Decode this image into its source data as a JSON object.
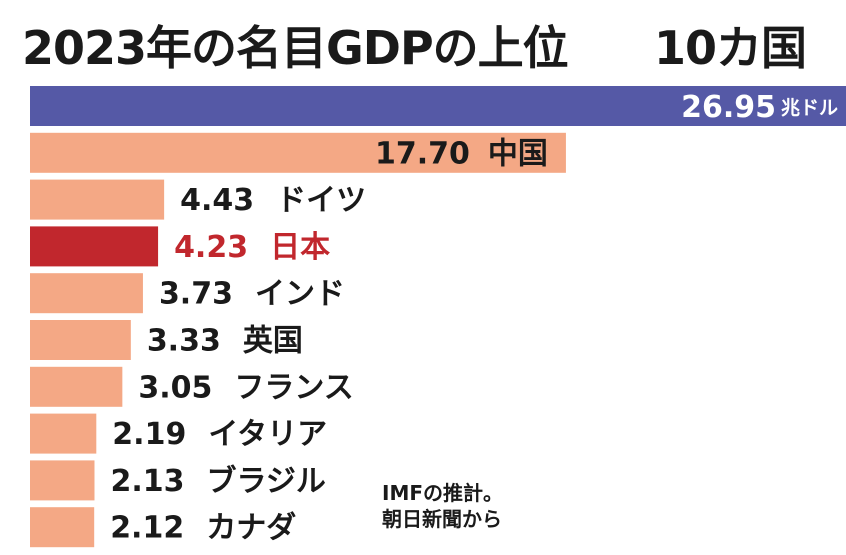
{
  "title": "2023年の名目GDPの上位",
  "subtitle": "10カ国",
  "note": {
    "line1": "IMFの推計。",
    "line2": "朝日新聞から"
  },
  "colors": {
    "us": "#5559a6",
    "highlight": "#c1272d",
    "default": "#f4a885",
    "text": "#1a1a1a"
  },
  "chart_data": {
    "type": "bar",
    "orientation": "horizontal",
    "unit": "兆ドル",
    "title": "2023年の名目GDPの上位",
    "subtitle": "10カ国",
    "xlim": [
      0,
      26.95
    ],
    "grid": false,
    "categories": [
      "",
      "中国",
      "ドイツ",
      "日本",
      "インド",
      "英国",
      "フランス",
      "イタリア",
      "ブラジル",
      "カナダ"
    ],
    "values": [
      26.95,
      17.7,
      4.43,
      4.23,
      3.73,
      3.33,
      3.05,
      2.19,
      2.13,
      2.12
    ],
    "labels": [
      "26.95",
      "17.70",
      "4.43",
      "4.23",
      "3.73",
      "3.33",
      "3.05",
      "2.19",
      "2.13",
      "2.12"
    ],
    "highlight_index": 3
  }
}
